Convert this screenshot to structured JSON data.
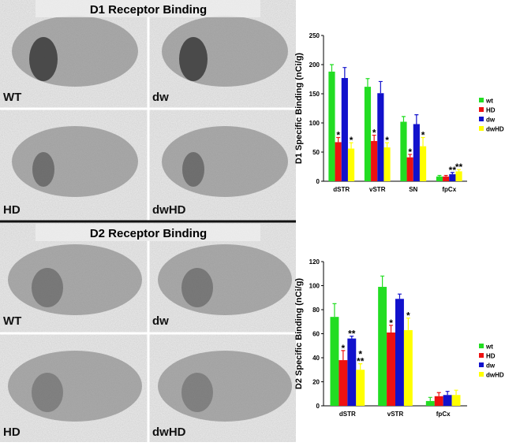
{
  "figure": {
    "sections": [
      {
        "title": "D1 Receptor Binding",
        "panels": [
          "WT",
          "dw",
          "HD",
          "dwHD"
        ]
      },
      {
        "title": "D2 Receptor Binding",
        "panels": [
          "WT",
          "dw",
          "HD",
          "dwHD"
        ]
      }
    ]
  },
  "chart_data": [
    {
      "type": "bar",
      "ylabel": "D1 Specific Binding (nCi/g)",
      "categories": [
        "dSTR",
        "vSTR",
        "SN",
        "fpCx"
      ],
      "ylim": [
        0,
        250
      ],
      "yticks": [
        0,
        50,
        100,
        150,
        200,
        250
      ],
      "series": [
        {
          "name": "wt",
          "color": "#22dd22",
          "values": [
            188,
            162,
            102,
            8
          ],
          "errors": [
            12,
            14,
            9,
            2
          ],
          "labels": [
            null,
            null,
            null,
            null
          ]
        },
        {
          "name": "HD",
          "color": "#ee1111",
          "values": [
            67,
            69,
            41,
            8
          ],
          "errors": [
            8,
            10,
            5,
            2
          ],
          "labels": [
            [
              "*"
            ],
            [
              "*"
            ],
            [
              "*"
            ],
            null
          ]
        },
        {
          "name": "dw",
          "color": "#1111cc",
          "values": [
            177,
            151,
            98,
            12
          ],
          "errors": [
            18,
            20,
            16,
            3
          ],
          "labels": [
            null,
            null,
            null,
            [
              "**"
            ]
          ]
        },
        {
          "name": "dwHD",
          "color": "#ffff00",
          "values": [
            56,
            58,
            60,
            17
          ],
          "errors": [
            10,
            8,
            15,
            3
          ],
          "labels": [
            [
              "*"
            ],
            [
              "*"
            ],
            [
              "*"
            ],
            [
              "**"
            ]
          ]
        }
      ]
    },
    {
      "type": "bar",
      "ylabel": "D2 Specific Binding (nCi/g)",
      "categories": [
        "dSTR",
        "vSTR",
        "fpCx"
      ],
      "ylim": [
        0,
        120
      ],
      "yticks": [
        0,
        20,
        40,
        60,
        80,
        100,
        120
      ],
      "series": [
        {
          "name": "wt",
          "color": "#22dd22",
          "values": [
            74,
            99,
            4
          ],
          "errors": [
            11,
            9,
            3
          ],
          "labels": [
            null,
            null,
            null
          ]
        },
        {
          "name": "HD",
          "color": "#ee1111",
          "values": [
            38,
            61,
            8
          ],
          "errors": [
            8,
            6,
            3
          ],
          "labels": [
            [
              "*"
            ],
            [
              "*"
            ],
            null
          ]
        },
        {
          "name": "dw",
          "color": "#1111cc",
          "values": [
            56,
            89,
            9
          ],
          "errors": [
            2,
            4,
            3
          ],
          "labels": [
            [
              "**"
            ],
            null,
            null
          ]
        },
        {
          "name": "dwHD",
          "color": "#ffff00",
          "values": [
            30,
            63,
            9
          ],
          "errors": [
            5,
            10,
            4
          ],
          "labels": [
            [
              "*",
              "**"
            ],
            [
              "*"
            ],
            null
          ]
        }
      ]
    }
  ]
}
